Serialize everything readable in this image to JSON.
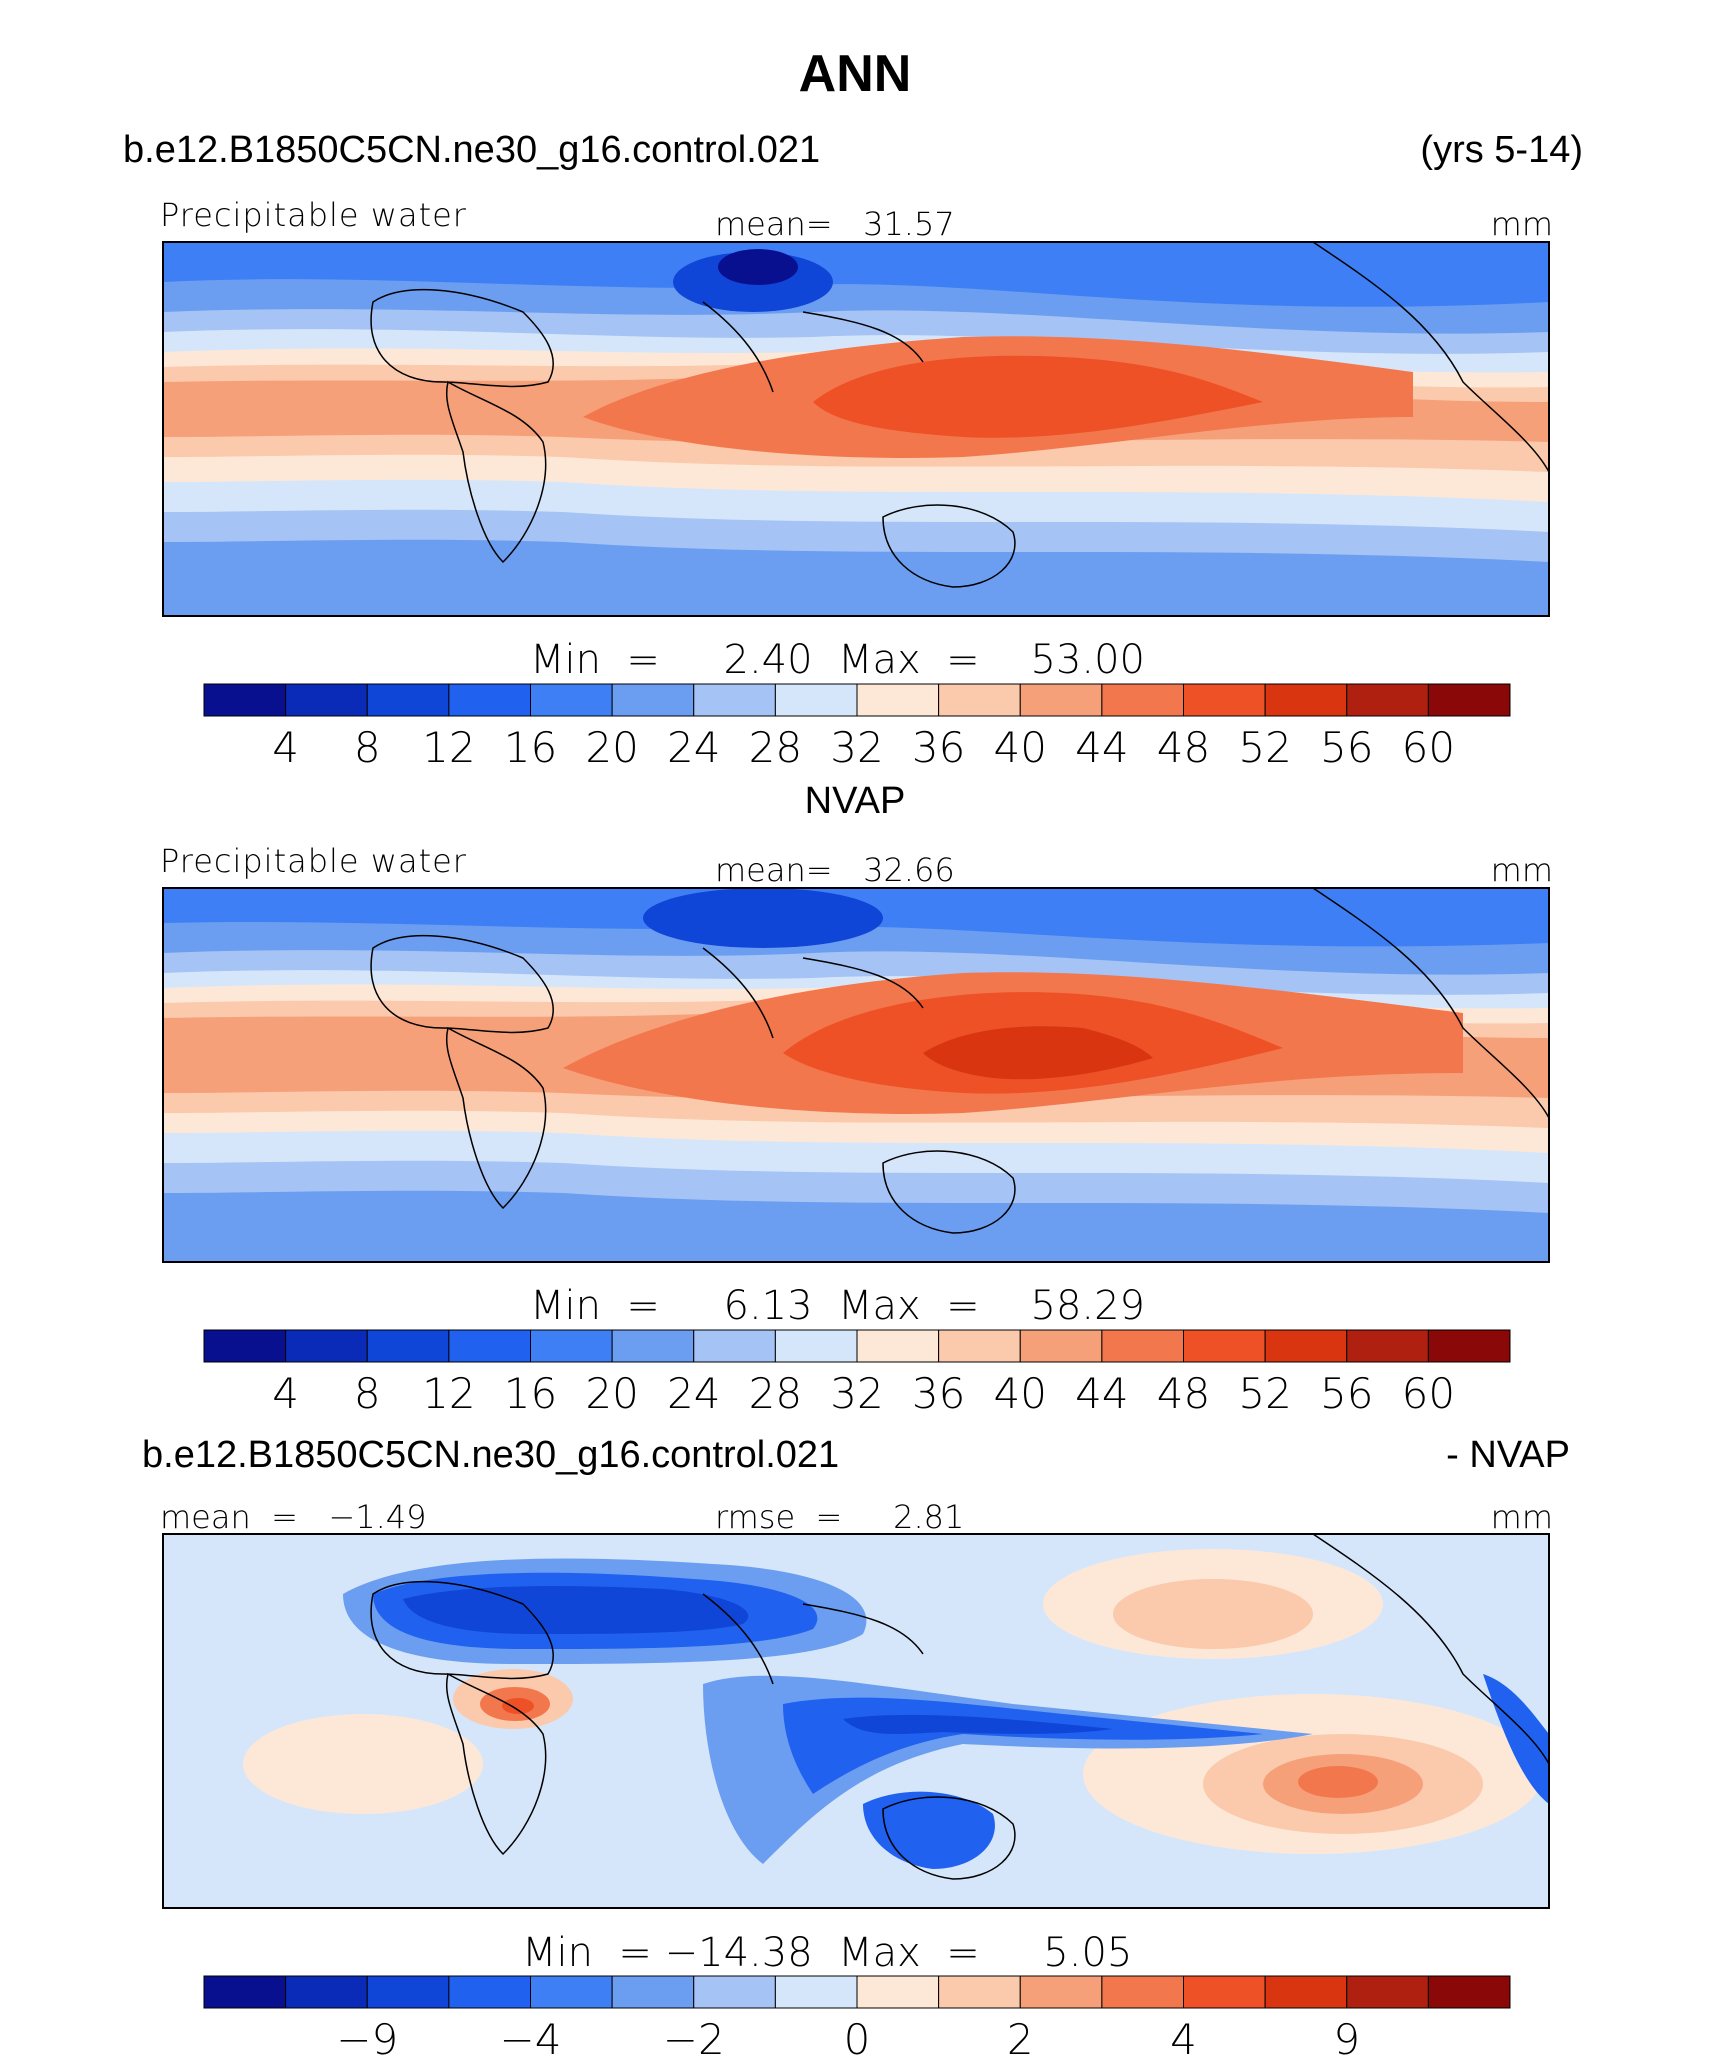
{
  "title": "ANN",
  "panels": [
    {
      "case_name": "b.e12.B1850C5CN.ne30_g16.control.021",
      "right_header": "(yrs 5-14)",
      "left_label": "Precipitable water",
      "center_label": "mean=   31.57",
      "units": "mm",
      "stats": "Min  =     2.40  Max  =    53.00"
    },
    {
      "case_name": "NVAP",
      "right_header": "",
      "left_label": "Precipitable water",
      "center_label": "mean=   32.66",
      "units": "mm",
      "stats": "Min  =     6.13  Max  =    58.29"
    },
    {
      "case_name": "b.e12.B1850C5CN.ne30_g16.control.021",
      "right_header": "- NVAP",
      "left_label": "mean  =   −1.49",
      "center_label": "rmse  =     2.81",
      "units": "mm",
      "stats": "Min  = −14.38  Max  =     5.05"
    }
  ],
  "colorbars": [
    {
      "colors": [
        "#08108f",
        "#0a2bb8",
        "#1046d8",
        "#2061f0",
        "#3f7ff5",
        "#6b9ef0",
        "#a5c3f5",
        "#d6e6fa",
        "#fde8d8",
        "#fbc9ac",
        "#f6a07a",
        "#f3774d",
        "#ee5126",
        "#d93510",
        "#b02010",
        "#8a0808"
      ],
      "ticks": [
        "4",
        "8",
        "12",
        "16",
        "20",
        "24",
        "28",
        "32",
        "36",
        "40",
        "44",
        "48",
        "52",
        "56",
        "60"
      ]
    },
    {
      "colors": [
        "#08108f",
        "#0a2bb8",
        "#1046d8",
        "#2061f0",
        "#3f7ff5",
        "#6b9ef0",
        "#a5c3f5",
        "#d6e6fa",
        "#fde8d8",
        "#fbc9ac",
        "#f6a07a",
        "#f3774d",
        "#ee5126",
        "#d93510",
        "#b02010",
        "#8a0808"
      ],
      "ticks": [
        "4",
        "8",
        "12",
        "16",
        "20",
        "24",
        "28",
        "32",
        "36",
        "40",
        "44",
        "48",
        "52",
        "56",
        "60"
      ]
    },
    {
      "colors": [
        "#08108f",
        "#0a2bb8",
        "#1046d8",
        "#2061f0",
        "#3f7ff5",
        "#6b9ef0",
        "#a5c3f5",
        "#d6e6fa",
        "#fde8d8",
        "#fbc9ac",
        "#f6a07a",
        "#f3774d",
        "#ee5126",
        "#d93510",
        "#b02010",
        "#8a0808"
      ],
      "ticks": [
        "",
        "−9",
        "",
        "−4",
        "",
        "−2",
        "",
        "0",
        "",
        "2",
        "",
        "4",
        "",
        "9",
        ""
      ]
    }
  ]
}
